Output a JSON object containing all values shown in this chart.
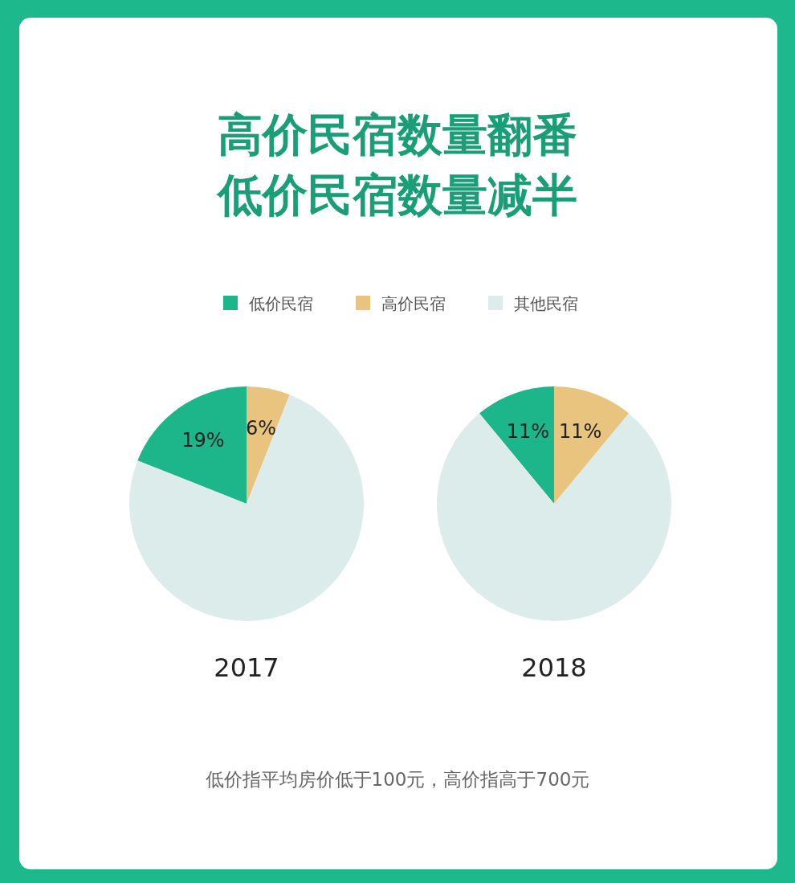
{
  "chart_data": [
    {
      "type": "pie",
      "title": "高价民宿数量翻番低价民宿数量减半",
      "subtitle": "2017",
      "categories": [
        "低价民宿",
        "高价民宿",
        "其他民宿"
      ],
      "values": [
        19,
        6,
        75
      ],
      "colors": [
        "#1db58a",
        "#e8c47e",
        "#dcecea"
      ],
      "value_labels": [
        "19%",
        "6%",
        null
      ],
      "legend": "top",
      "annotations": [
        "低价指平均房价低于100元，高价指高于700元"
      ]
    },
    {
      "type": "pie",
      "subtitle": "2018",
      "categories": [
        null,
        null,
        null
      ],
      "values": [
        11,
        11,
        78
      ],
      "colors": [
        "#1db58a",
        "#e8c47e",
        "#dcecea"
      ],
      "value_labels": [
        "11%",
        "11%",
        null
      ]
    }
  ]
}
